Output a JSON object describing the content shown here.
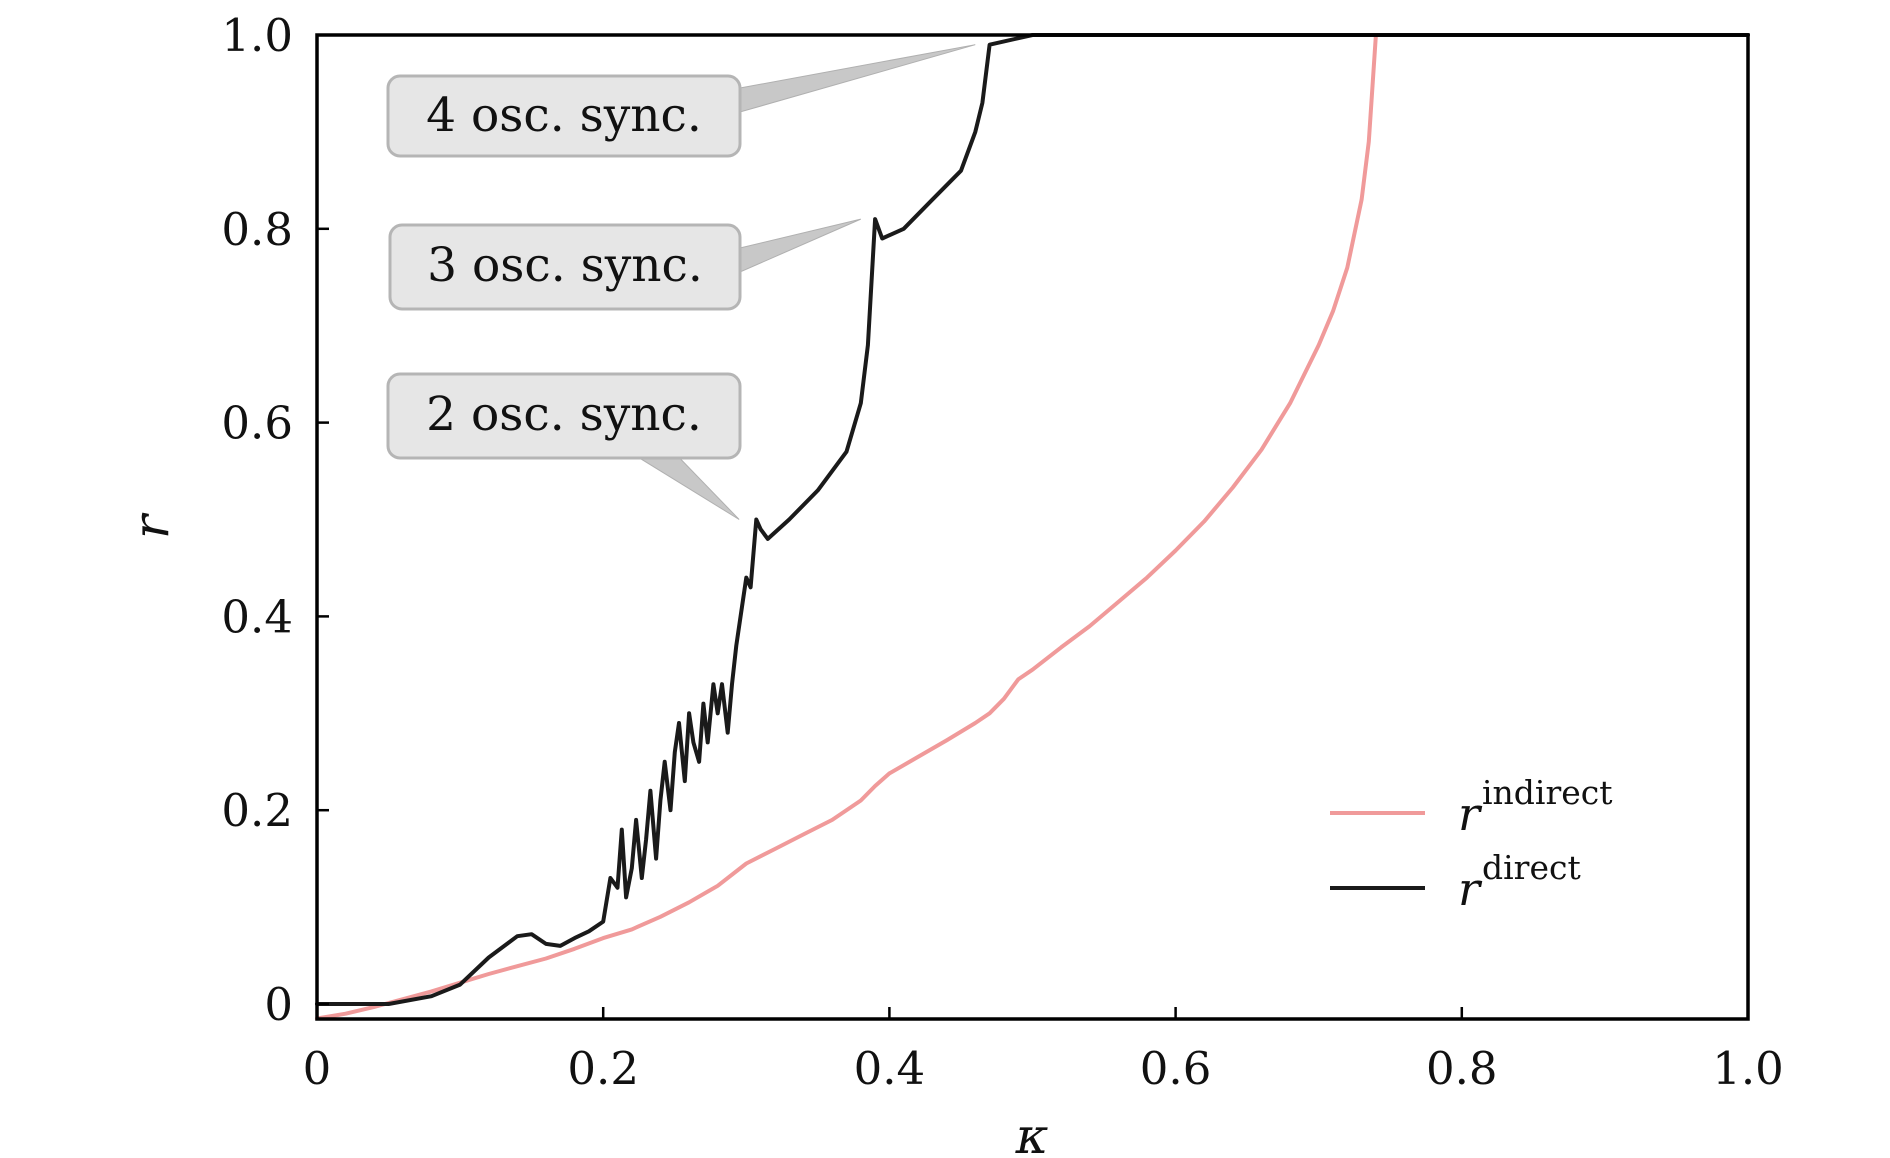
{
  "chart_data": {
    "type": "line",
    "xlabel": "κ",
    "ylabel": "r",
    "xlim": [
      0,
      1
    ],
    "ylim": [
      0,
      1
    ],
    "xticks": [
      0,
      0.2,
      0.4,
      0.6,
      0.8,
      1.0
    ],
    "xtick_labels": [
      "0",
      "0.2",
      "0.4",
      "0.6",
      "0.8",
      "1.0"
    ],
    "yticks": [
      0,
      0.2,
      0.4,
      0.6,
      0.8,
      1.0
    ],
    "ytick_labels": [
      "0",
      "0.2",
      "0.4",
      "0.6",
      "0.8",
      "1.0"
    ],
    "grid": false,
    "legend_position": "bottom-right",
    "series": [
      {
        "name": "indirect",
        "legend_base": "r",
        "legend_sup": "indirect",
        "color": "#f09a9a",
        "points": [
          [
            0.0,
            -0.015
          ],
          [
            0.02,
            -0.01
          ],
          [
            0.04,
            -0.003
          ],
          [
            0.06,
            0.005
          ],
          [
            0.08,
            0.013
          ],
          [
            0.1,
            0.022
          ],
          [
            0.12,
            0.031
          ],
          [
            0.14,
            0.039
          ],
          [
            0.16,
            0.047
          ],
          [
            0.18,
            0.057
          ],
          [
            0.2,
            0.068
          ],
          [
            0.22,
            0.077
          ],
          [
            0.24,
            0.09
          ],
          [
            0.26,
            0.105
          ],
          [
            0.28,
            0.122
          ],
          [
            0.3,
            0.145
          ],
          [
            0.32,
            0.16
          ],
          [
            0.34,
            0.175
          ],
          [
            0.36,
            0.19
          ],
          [
            0.38,
            0.21
          ],
          [
            0.39,
            0.225
          ],
          [
            0.4,
            0.238
          ],
          [
            0.42,
            0.255
          ],
          [
            0.44,
            0.272
          ],
          [
            0.46,
            0.29
          ],
          [
            0.47,
            0.3
          ],
          [
            0.48,
            0.315
          ],
          [
            0.49,
            0.335
          ],
          [
            0.5,
            0.345
          ],
          [
            0.52,
            0.368
          ],
          [
            0.54,
            0.39
          ],
          [
            0.56,
            0.415
          ],
          [
            0.58,
            0.44
          ],
          [
            0.6,
            0.468
          ],
          [
            0.62,
            0.498
          ],
          [
            0.64,
            0.533
          ],
          [
            0.66,
            0.572
          ],
          [
            0.68,
            0.62
          ],
          [
            0.7,
            0.68
          ],
          [
            0.71,
            0.715
          ],
          [
            0.72,
            0.76
          ],
          [
            0.73,
            0.83
          ],
          [
            0.735,
            0.89
          ],
          [
            0.74,
            1.0
          ]
        ]
      },
      {
        "name": "direct",
        "legend_base": "r",
        "legend_sup": "direct",
        "color": "#1a1a1a",
        "points": [
          [
            0.0,
            0.0
          ],
          [
            0.05,
            0.0
          ],
          [
            0.08,
            0.008
          ],
          [
            0.1,
            0.02
          ],
          [
            0.12,
            0.048
          ],
          [
            0.14,
            0.07
          ],
          [
            0.15,
            0.072
          ],
          [
            0.16,
            0.062
          ],
          [
            0.17,
            0.06
          ],
          [
            0.18,
            0.068
          ],
          [
            0.19,
            0.075
          ],
          [
            0.2,
            0.085
          ],
          [
            0.205,
            0.13
          ],
          [
            0.21,
            0.12
          ],
          [
            0.213,
            0.18
          ],
          [
            0.216,
            0.11
          ],
          [
            0.22,
            0.14
          ],
          [
            0.223,
            0.19
          ],
          [
            0.227,
            0.13
          ],
          [
            0.23,
            0.17
          ],
          [
            0.233,
            0.22
          ],
          [
            0.237,
            0.15
          ],
          [
            0.24,
            0.21
          ],
          [
            0.243,
            0.25
          ],
          [
            0.247,
            0.2
          ],
          [
            0.25,
            0.26
          ],
          [
            0.253,
            0.29
          ],
          [
            0.257,
            0.23
          ],
          [
            0.26,
            0.3
          ],
          [
            0.263,
            0.27
          ],
          [
            0.267,
            0.25
          ],
          [
            0.27,
            0.31
          ],
          [
            0.273,
            0.27
          ],
          [
            0.277,
            0.33
          ],
          [
            0.28,
            0.3
          ],
          [
            0.283,
            0.33
          ],
          [
            0.287,
            0.28
          ],
          [
            0.29,
            0.33
          ],
          [
            0.293,
            0.37
          ],
          [
            0.297,
            0.41
          ],
          [
            0.3,
            0.44
          ],
          [
            0.303,
            0.43
          ],
          [
            0.307,
            0.5
          ],
          [
            0.31,
            0.49
          ],
          [
            0.315,
            0.48
          ],
          [
            0.33,
            0.5
          ],
          [
            0.35,
            0.53
          ],
          [
            0.37,
            0.57
          ],
          [
            0.38,
            0.62
          ],
          [
            0.385,
            0.68
          ],
          [
            0.39,
            0.81
          ],
          [
            0.395,
            0.79
          ],
          [
            0.41,
            0.8
          ],
          [
            0.43,
            0.83
          ],
          [
            0.45,
            0.86
          ],
          [
            0.46,
            0.9
          ],
          [
            0.465,
            0.93
          ],
          [
            0.47,
            0.99
          ],
          [
            0.5,
            1.0
          ],
          [
            1.0,
            1.0
          ]
        ]
      }
    ],
    "annotations": [
      {
        "text": "4 osc. sync.",
        "target": [
          0.46,
          0.99
        ]
      },
      {
        "text": "3 osc. sync.",
        "target": [
          0.38,
          0.81
        ]
      },
      {
        "text": "2 osc. sync.",
        "target": [
          0.295,
          0.5
        ]
      }
    ]
  }
}
